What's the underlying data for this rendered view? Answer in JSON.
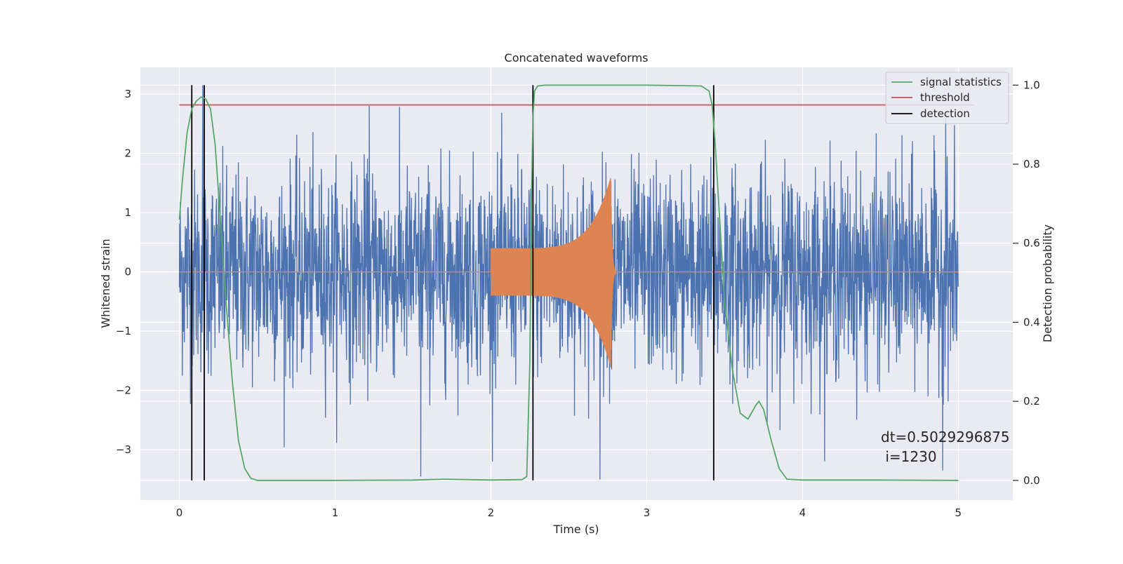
{
  "chart_data": {
    "type": "line",
    "title": "Concatenated waveforms",
    "xlabel": "Time (s)",
    "ylabel_left": "Whitened strain",
    "ylabel_right": "Detection probability",
    "xlim": [
      -0.25,
      5.35
    ],
    "ylim_left": [
      -3.85,
      3.45
    ],
    "ylim_right": [
      -0.05,
      1.045
    ],
    "x_ticks": [
      0,
      1,
      2,
      3,
      4,
      5
    ],
    "y_ticks_left": [
      -3,
      -2,
      -1,
      0,
      1,
      2,
      3
    ],
    "y_ticks_right": [
      0.0,
      0.2,
      0.4,
      0.6,
      0.8,
      1.0
    ],
    "x_tick_labels": [
      "0",
      "1",
      "2",
      "3",
      "4",
      "5"
    ],
    "y_tick_labels_left": [
      "−3",
      "−2",
      "−1",
      "0",
      "1",
      "2",
      "3"
    ],
    "y_tick_labels_right": [
      "0.0",
      "0.2",
      "0.4",
      "0.6",
      "0.8",
      "1.0"
    ],
    "grid": true,
    "legend_position": "top-right",
    "series": [
      {
        "name": "",
        "axis": "left",
        "color": "#4c72b0",
        "kind": "noise strain",
        "x_range": [
          0,
          5
        ],
        "amplitude_envelope": 2.9,
        "extremes": [
          {
            "x": 0.15,
            "y": 3.15
          },
          {
            "x": 1.22,
            "y": 2.8
          },
          {
            "x": 1.55,
            "y": -3.45
          },
          {
            "x": 2.7,
            "y": -3.5
          },
          {
            "x": 4.92,
            "y": 2.6
          },
          {
            "x": 4.9,
            "y": -3.35
          }
        ]
      },
      {
        "name": "",
        "axis": "left",
        "color": "#dd8452",
        "kind": "chirp injection",
        "x_range": [
          0,
          5
        ],
        "chirp_start": 2.0,
        "chirp_peak": 2.77,
        "chirp_end": 2.8,
        "start_amplitude": 0.4,
        "peak_amplitude": 1.6
      },
      {
        "name": "signal statistics",
        "axis": "right",
        "color": "#55a868",
        "x": [
          0.0,
          0.02,
          0.05,
          0.08,
          0.11,
          0.14,
          0.17,
          0.2,
          0.23,
          0.26,
          0.3,
          0.34,
          0.38,
          0.42,
          0.46,
          0.5,
          1.0,
          1.5,
          1.7,
          2.0,
          2.2,
          2.23,
          2.25,
          2.26,
          2.27,
          2.28,
          2.3,
          2.35,
          2.5,
          3.0,
          3.35,
          3.4,
          3.42,
          3.44,
          3.47,
          3.5,
          3.55,
          3.6,
          3.65,
          3.7,
          3.72,
          3.75,
          3.8,
          3.85,
          3.9,
          4.0,
          4.5,
          5.0
        ],
        "y": [
          0.66,
          0.76,
          0.88,
          0.94,
          0.96,
          0.97,
          0.965,
          0.94,
          0.85,
          0.68,
          0.45,
          0.25,
          0.1,
          0.03,
          0.005,
          0.0,
          0.0,
          0.001,
          0.003,
          0.001,
          0.002,
          0.01,
          0.3,
          0.7,
          0.92,
          0.985,
          0.998,
          1.0,
          1.0,
          1.0,
          0.998,
          0.985,
          0.95,
          0.85,
          0.65,
          0.45,
          0.28,
          0.17,
          0.155,
          0.19,
          0.2,
          0.18,
          0.1,
          0.03,
          0.003,
          0.001,
          0.001,
          0.0
        ]
      },
      {
        "name": "threshold",
        "axis": "right",
        "color": "#c44e52",
        "value": 0.95,
        "x_range": [
          0,
          5.1
        ]
      }
    ],
    "detections": {
      "name": "detection",
      "color": "#000000",
      "x": [
        0.08,
        0.16,
        2.27,
        3.43
      ]
    },
    "annotation": {
      "line1": "dt=0.5029296875",
      "line2": " i=1230"
    },
    "colors": {
      "background": "#eaeaf2",
      "grid": "#ffffff"
    }
  }
}
